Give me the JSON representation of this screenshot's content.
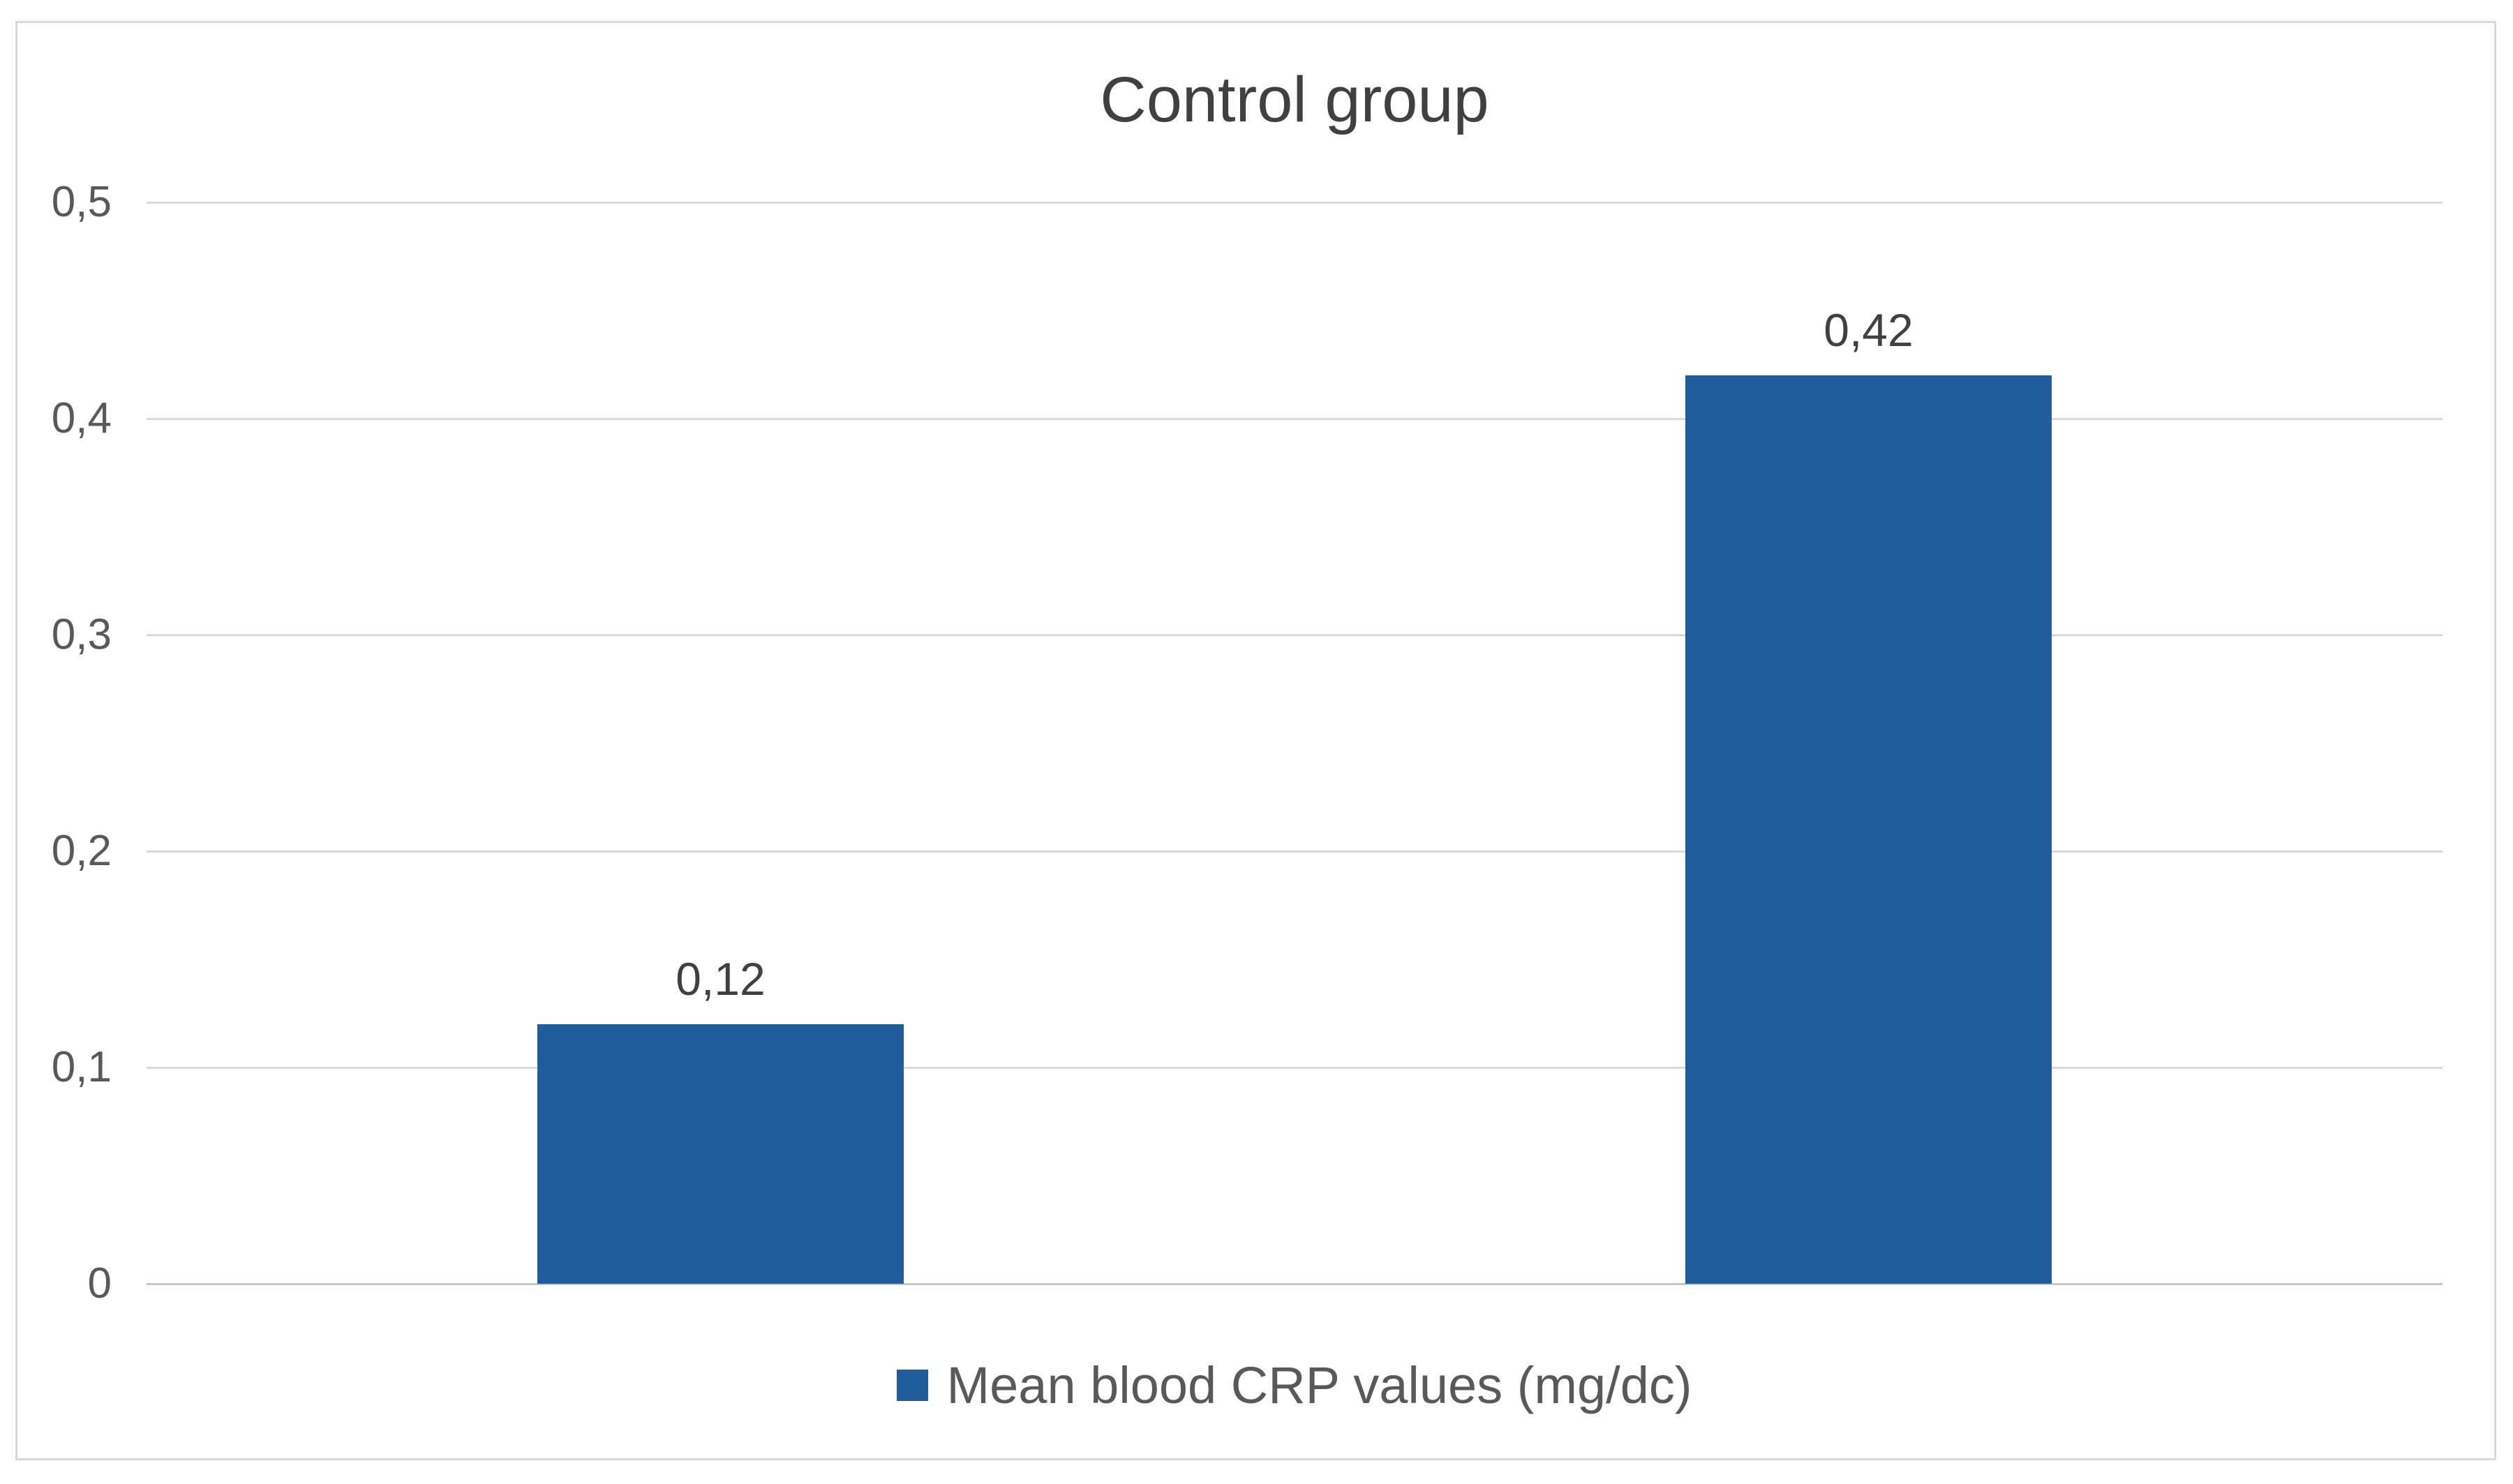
{
  "chart_data": {
    "type": "bar",
    "title": "Control group",
    "categories": [
      "",
      ""
    ],
    "series": [
      {
        "name": "Mean blood CRP values (mg/dc)",
        "values": [
          0.12,
          0.42
        ],
        "value_labels": [
          "0,12",
          "0,42"
        ]
      }
    ],
    "xlabel": "",
    "ylabel": "",
    "ylim": [
      0,
      0.5
    ],
    "y_ticks": [
      {
        "value": 0.5,
        "label": "0,5"
      },
      {
        "value": 0.4,
        "label": "0,4"
      },
      {
        "value": 0.3,
        "label": "0,3"
      },
      {
        "value": 0.2,
        "label": "0,2"
      },
      {
        "value": 0.1,
        "label": "0,1"
      },
      {
        "value": 0,
        "label": "0"
      }
    ],
    "decimal_separator": ",",
    "grid": true,
    "legend_position": "bottom"
  },
  "colors": {
    "bar": "#215d9c",
    "title_text": "#404040",
    "axis_text": "#595959",
    "data_label_text": "#404040",
    "legend_text": "#595959",
    "gridline": "#d9d9d9",
    "axis_line": "#c6c6c6",
    "frame_border": "#d9d9d9",
    "background": "#ffffff"
  }
}
